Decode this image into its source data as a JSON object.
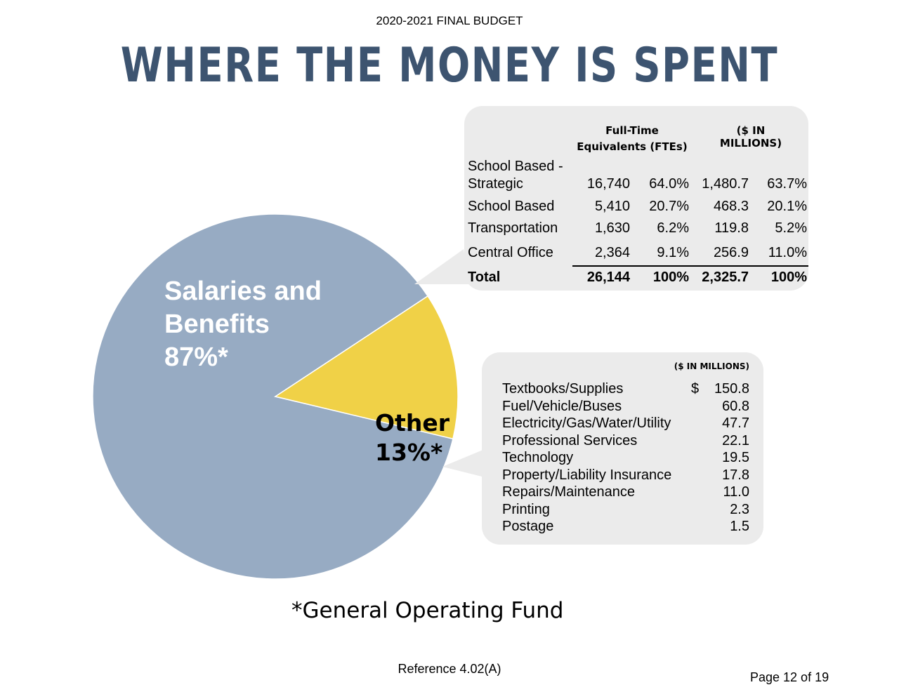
{
  "header": "2020-2021 FINAL BUDGET",
  "title": "WHERE THE MONEY IS SPENT",
  "chart_data": {
    "type": "pie",
    "slices": [
      {
        "label": "Salaries and Benefits",
        "value": 87,
        "display": "87%*",
        "color": "#97abc3"
      },
      {
        "label": "Other",
        "value": 13,
        "display": "13%*",
        "color": "#f0d147"
      }
    ]
  },
  "salaries_table": {
    "header_fte_1": "Full-Time",
    "header_fte_2": "Equivalents (FTEs)",
    "header_millions": "($ IN MILLIONS)",
    "rows": [
      {
        "label": "School Based -",
        "label2": "Strategic",
        "fte": "16,740",
        "fte_pct": "64.0%",
        "millions": "1,480.7",
        "millions_pct": "63.7%"
      },
      {
        "label": "School Based",
        "fte": "5,410",
        "fte_pct": "20.7%",
        "millions": "468.3",
        "millions_pct": "20.1%"
      },
      {
        "label": "Transportation",
        "fte": "1,630",
        "fte_pct": "6.2%",
        "millions": "119.8",
        "millions_pct": "5.2%"
      },
      {
        "label": "Central Office",
        "fte": "2,364",
        "fte_pct": "9.1%",
        "millions": "256.9",
        "millions_pct": "11.0%"
      }
    ],
    "total": {
      "label": "Total",
      "fte": "26,144",
      "fte_pct": "100%",
      "millions": "2,325.7",
      "millions_pct": "100%"
    }
  },
  "other_table": {
    "header_millions": "($ IN MILLIONS)",
    "currency": "$",
    "rows": [
      {
        "label": "Textbooks/Supplies",
        "value": "150.8"
      },
      {
        "label": "Fuel/Vehicle/Buses",
        "value": "60.8"
      },
      {
        "label": "Electricity/Gas/Water/Utility",
        "value": "47.7"
      },
      {
        "label": "Professional Services",
        "value": "22.1"
      },
      {
        "label": "Technology",
        "value": "19.5"
      },
      {
        "label": "Property/Liability Insurance",
        "value": "17.8"
      },
      {
        "label": "Repairs/Maintenance",
        "value": "11.0"
      },
      {
        "label": "Printing",
        "value": "2.3"
      },
      {
        "label": "Postage",
        "value": "1.5"
      }
    ]
  },
  "footnote": "*General Operating Fund",
  "reference": "Reference 4.02(A)",
  "page": "Page 12 of 19"
}
